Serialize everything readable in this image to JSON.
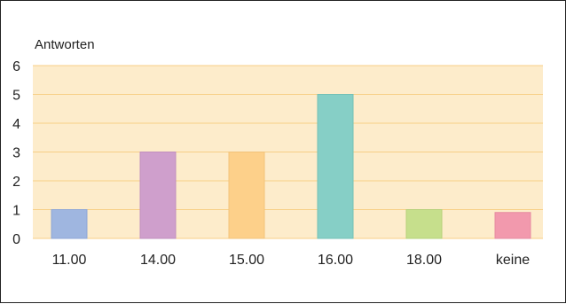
{
  "chart_data": {
    "type": "bar",
    "title": "",
    "xlabel": "",
    "ylabel": "Antworten",
    "categories": [
      "11.00",
      "14.00",
      "15.00",
      "16.00",
      "18.00",
      "keine"
    ],
    "values": [
      1,
      3,
      3,
      5,
      1,
      0.9
    ],
    "ylim": [
      0,
      6
    ],
    "yticks": [
      "0",
      "1",
      "2",
      "3",
      "4",
      "5",
      "6"
    ],
    "grid": true,
    "legend": "none",
    "colors": {
      "plot_background": "#fdeccb",
      "grid": "#f7cf86",
      "bars": [
        "#9fb6e0",
        "#cf9fcc",
        "#fdd08a",
        "#86cfc6",
        "#c6df8c",
        "#f299ad"
      ],
      "bar_borders": [
        "#8fa7d6",
        "#c18fbe",
        "#f2c37b",
        "#74c0b6",
        "#b6d17a",
        "#e68aa0"
      ]
    }
  }
}
